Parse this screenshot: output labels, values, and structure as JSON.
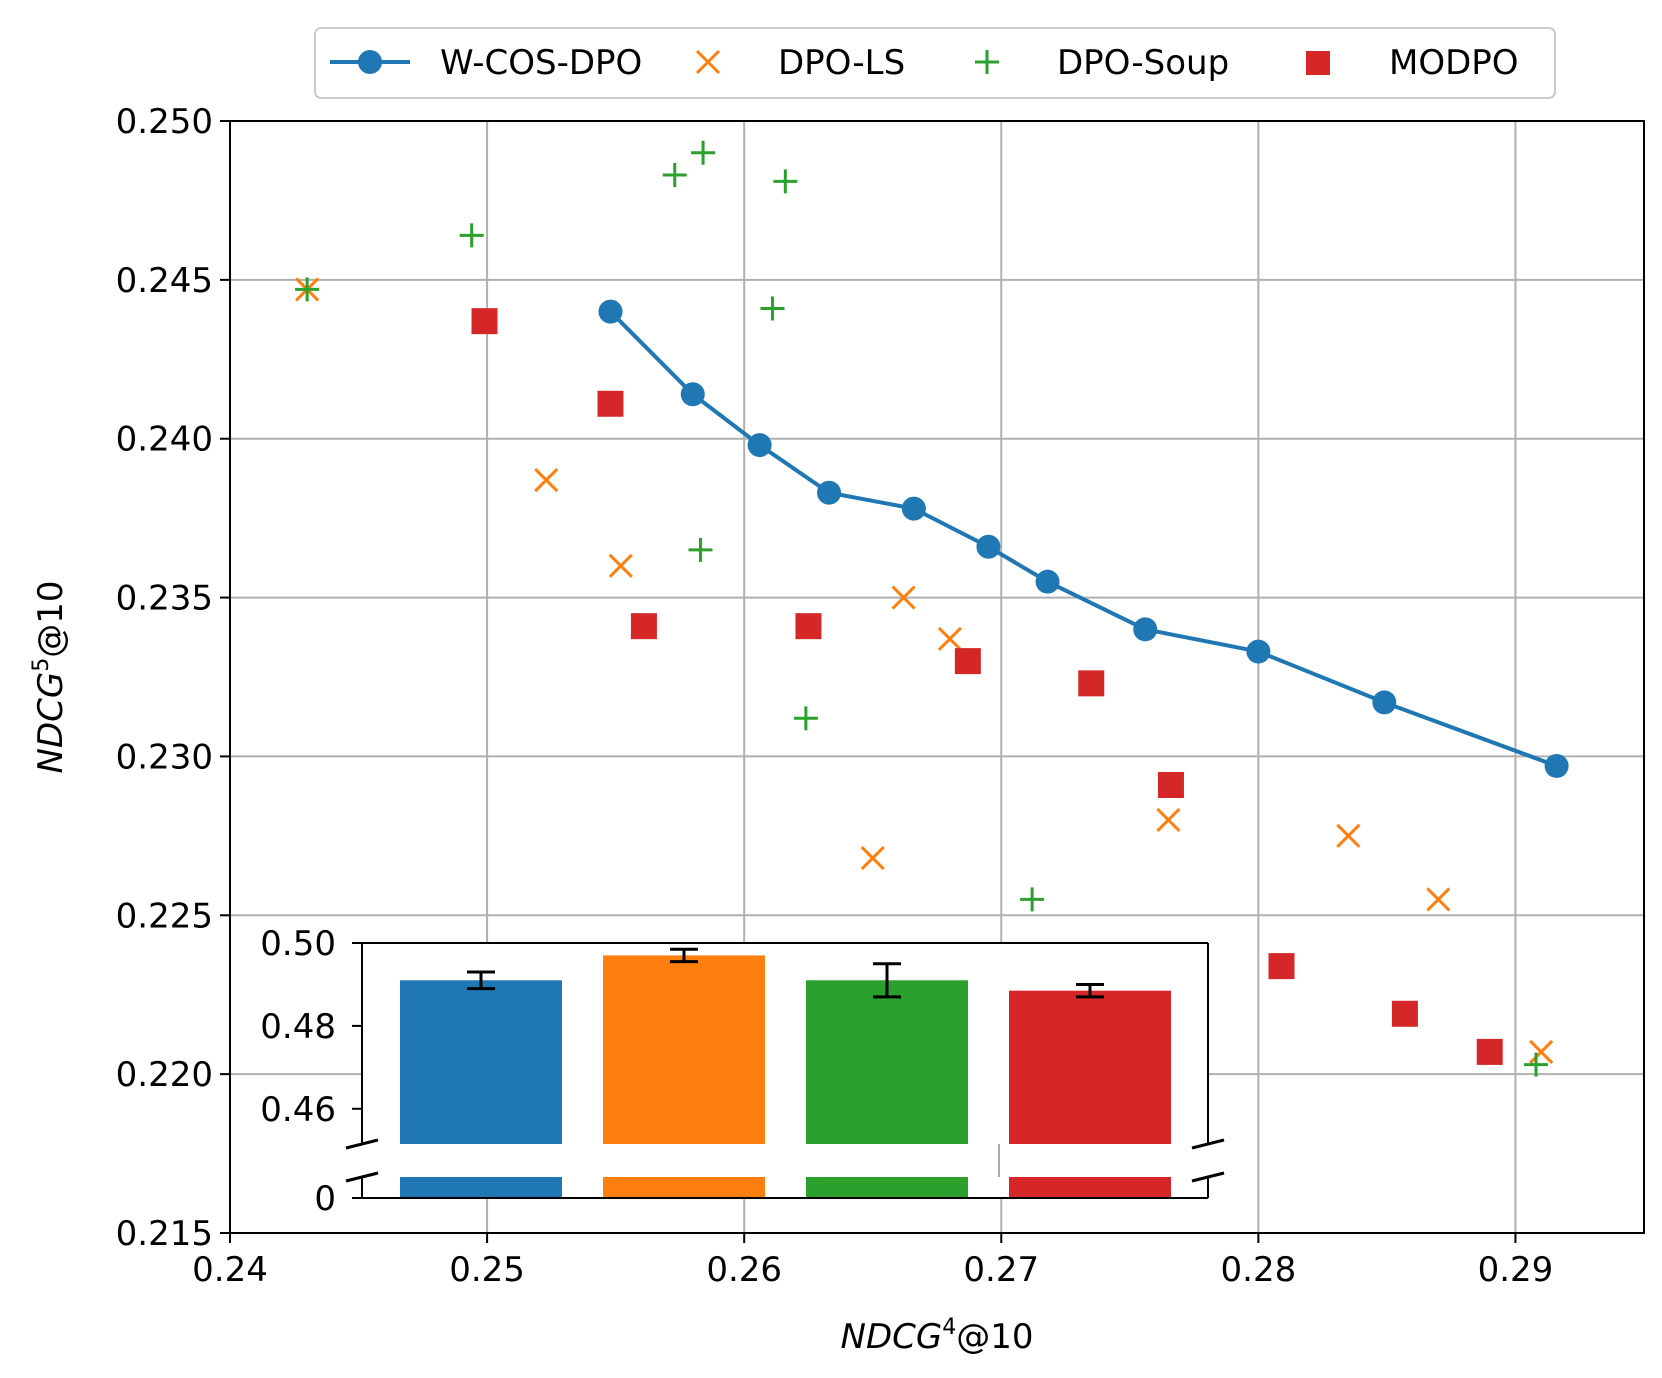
{
  "colors": {
    "blue": "#1f77b4",
    "orange": "#ff7f0e",
    "green": "#2ca02c",
    "red": "#d62728"
  },
  "chart_data": [
    {
      "type": "scatter",
      "xlabel_base": "NDCG",
      "xlabel_sup": "4",
      "xlabel_tail": "@10",
      "ylabel_base": "NDCG",
      "ylabel_sup": "5",
      "ylabel_tail": "@10",
      "xlim": [
        0.24,
        0.295
      ],
      "ylim": [
        0.215,
        0.25
      ],
      "xticks": [
        0.24,
        0.25,
        0.26,
        0.27,
        0.28,
        0.29
      ],
      "xtick_labels": [
        "0.24",
        "0.25",
        "0.26",
        "0.27",
        "0.28",
        "0.29"
      ],
      "yticks": [
        0.215,
        0.22,
        0.225,
        0.23,
        0.235,
        0.24,
        0.245,
        0.25
      ],
      "ytick_labels": [
        "0.215",
        "0.220",
        "0.225",
        "0.230",
        "0.235",
        "0.240",
        "0.245",
        "0.250"
      ],
      "grid": true,
      "legend": "top-outside",
      "series": [
        {
          "name": "W-COS-DPO",
          "marker": "line-circle",
          "color": "#1f77b4",
          "x": [
            0.2548,
            0.258,
            0.2606,
            0.2633,
            0.2666,
            0.2695,
            0.2718,
            0.2756,
            0.28,
            0.2849,
            0.2916
          ],
          "y": [
            0.244,
            0.2414,
            0.2398,
            0.2383,
            0.2378,
            0.2366,
            0.2355,
            0.234,
            0.2333,
            0.2317,
            0.2297
          ]
        },
        {
          "name": "DPO-LS",
          "marker": "x",
          "color": "#ff7f0e",
          "x": [
            0.243,
            0.2523,
            0.2552,
            0.2662,
            0.268,
            0.265,
            0.2765,
            0.2835,
            0.287,
            0.291
          ],
          "y": [
            0.2447,
            0.2387,
            0.236,
            0.235,
            0.2337,
            0.2268,
            0.228,
            0.2275,
            0.2255,
            0.2207
          ]
        },
        {
          "name": "DPO-Soup",
          "marker": "plus",
          "color": "#2ca02c",
          "x": [
            0.243,
            0.2494,
            0.2573,
            0.2584,
            0.2616,
            0.2611,
            0.2583,
            0.2624,
            0.2712,
            0.2908
          ],
          "y": [
            0.2447,
            0.2464,
            0.2483,
            0.249,
            0.2481,
            0.2441,
            0.2365,
            0.2312,
            0.2255,
            0.2203
          ]
        },
        {
          "name": "MODPO",
          "marker": "square",
          "color": "#d62728",
          "x": [
            0.2499,
            0.2548,
            0.2561,
            0.2625,
            0.2687,
            0.2735,
            0.2766,
            0.2809,
            0.2857,
            0.289
          ],
          "y": [
            0.2437,
            0.2411,
            0.2341,
            0.2341,
            0.233,
            0.2323,
            0.2291,
            0.2234,
            0.2219,
            0.2207
          ]
        }
      ]
    },
    {
      "type": "bar",
      "inset": true,
      "categories": [
        "W-COS-DPO",
        "DPO-LS",
        "DPO-Soup",
        "MODPO"
      ],
      "values": [
        0.491,
        0.497,
        0.491,
        0.4885
      ],
      "errors": [
        0.002,
        0.0015,
        0.004,
        0.0015
      ],
      "colors": [
        "#1f77b4",
        "#ff7f0e",
        "#2ca02c",
        "#d62728"
      ],
      "broken_axis": true,
      "ylim_upper": [
        0.4515,
        0.5
      ],
      "ylim_lower": [
        0,
        0.0055
      ],
      "yticks_upper": [
        0.46,
        0.48,
        0.5
      ],
      "ytick_labels_upper": [
        "0.46",
        "0.48",
        "0.50"
      ],
      "ytick_labels_lower": [
        "0"
      ]
    }
  ]
}
